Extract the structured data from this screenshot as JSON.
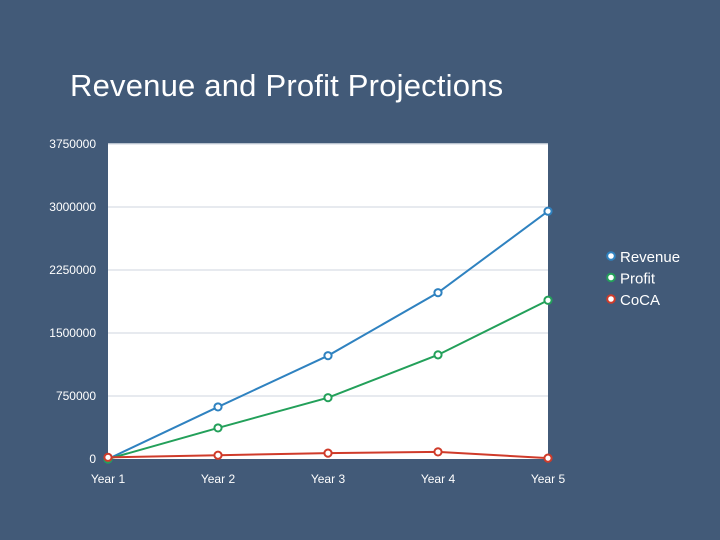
{
  "theme": {
    "background": "#425a78",
    "plot_background": "#ffffff",
    "grid_color": "#dfe4ea",
    "text_color": "#ffffff"
  },
  "slide": {
    "title": "Revenue and Profit Projections"
  },
  "chart_data": {
    "type": "line",
    "title": "Revenue and Profit Projections",
    "xlabel": "",
    "ylabel": "",
    "categories": [
      "Year 1",
      "Year 2",
      "Year 3",
      "Year 4",
      "Year 5"
    ],
    "ylim": [
      0,
      3750000
    ],
    "yticks": [
      0,
      750000,
      1500000,
      2250000,
      3000000,
      3750000
    ],
    "ytick_labels": [
      "0",
      "750000",
      "1500000",
      "2250000",
      "3000000",
      "3750000"
    ],
    "grid": true,
    "legend_position": "right",
    "series": [
      {
        "name": "Revenue",
        "color": "#2f82c0",
        "values": [
          0,
          620000,
          1230000,
          1980000,
          2950000
        ]
      },
      {
        "name": "Profit",
        "color": "#23a05a",
        "values": [
          0,
          370000,
          730000,
          1240000,
          1890000
        ]
      },
      {
        "name": "CoCA",
        "color": "#cf3b2a",
        "values": [
          20000,
          45000,
          70000,
          85000,
          10000
        ]
      }
    ]
  }
}
